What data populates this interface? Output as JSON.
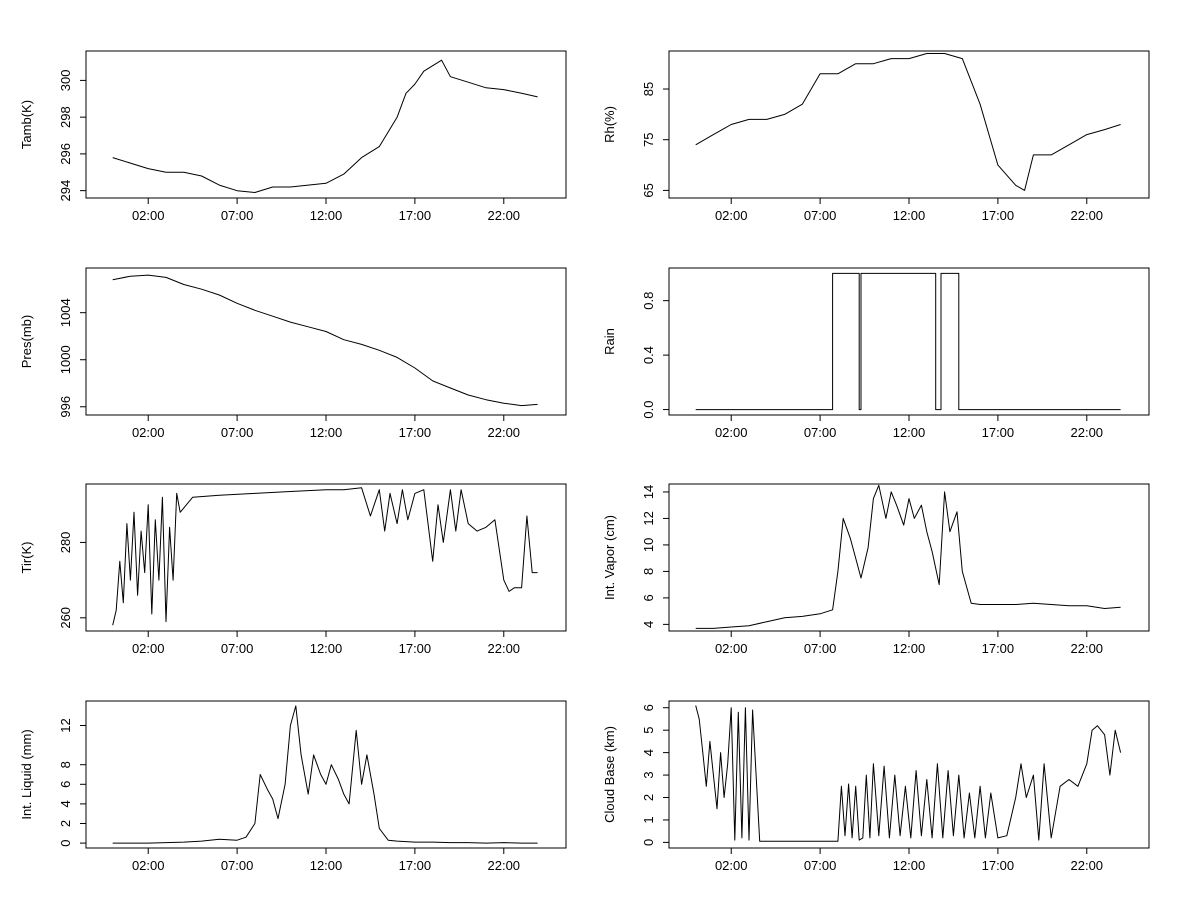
{
  "chart_data": [
    {
      "type": "line",
      "ylabel": "Tamb(K)",
      "xlim": [
        -1.5,
        25.5
      ],
      "ylim": [
        293.6,
        301.6
      ],
      "xticks": [
        2,
        7,
        12,
        17,
        22
      ],
      "xtick_labels": [
        "02:00",
        "07:00",
        "12:00",
        "17:00",
        "22:00"
      ],
      "yticks": [
        294,
        296,
        298,
        300
      ],
      "ytick_labels": [
        "294",
        "296",
        "298",
        "300"
      ],
      "x": [
        0,
        1,
        2,
        3,
        4,
        5,
        6,
        7,
        8,
        9,
        10,
        11,
        12,
        13,
        14,
        15,
        16,
        16.5,
        17,
        17.5,
        18,
        18.5,
        19,
        20,
        21,
        22,
        23,
        23.9
      ],
      "y": [
        295.8,
        295.5,
        295.2,
        295.0,
        295.0,
        294.8,
        294.3,
        294.0,
        293.9,
        294.2,
        294.2,
        294.3,
        294.4,
        294.9,
        295.8,
        296.4,
        298.0,
        299.3,
        299.8,
        300.5,
        300.8,
        301.1,
        300.2,
        299.9,
        299.6,
        299.5,
        299.3,
        299.1
      ]
    },
    {
      "type": "line",
      "ylabel": "Rh(%)",
      "xlim": [
        -1.5,
        25.5
      ],
      "ylim": [
        63.5,
        92.5
      ],
      "xticks": [
        2,
        7,
        12,
        17,
        22
      ],
      "xtick_labels": [
        "02:00",
        "07:00",
        "12:00",
        "17:00",
        "22:00"
      ],
      "yticks": [
        65,
        75,
        85
      ],
      "ytick_labels": [
        "65",
        "75",
        "85"
      ],
      "x": [
        0,
        1,
        2,
        3,
        4,
        5,
        6,
        7,
        8,
        9,
        10,
        11,
        12,
        13,
        14,
        15,
        16,
        17,
        17.5,
        18,
        18.5,
        19,
        20,
        21,
        22,
        23,
        23.9
      ],
      "y": [
        74,
        76,
        78,
        79,
        79,
        80,
        82,
        88,
        88,
        90,
        90,
        91,
        91,
        92,
        92,
        91,
        82,
        70,
        68,
        66,
        65,
        72,
        72,
        74,
        76,
        77,
        78
      ]
    },
    {
      "type": "line",
      "ylabel": "Pres(mb)",
      "xlim": [
        -1.5,
        25.5
      ],
      "ylim": [
        995.3,
        1007.8
      ],
      "xticks": [
        2,
        7,
        12,
        17,
        22
      ],
      "xtick_labels": [
        "02:00",
        "07:00",
        "12:00",
        "17:00",
        "22:00"
      ],
      "yticks": [
        996,
        1000,
        1004
      ],
      "ytick_labels": [
        "996",
        "1000",
        "1004"
      ],
      "x": [
        0,
        1,
        2,
        3,
        4,
        5,
        6,
        7,
        8,
        9,
        10,
        11,
        12,
        13,
        14,
        15,
        16,
        17,
        18,
        19,
        20,
        21,
        22,
        23,
        23.9
      ],
      "y": [
        1006.8,
        1007.1,
        1007.2,
        1007.0,
        1006.4,
        1006.0,
        1005.5,
        1004.8,
        1004.2,
        1003.7,
        1003.2,
        1002.8,
        1002.4,
        1001.7,
        1001.3,
        1000.8,
        1000.2,
        999.3,
        998.2,
        997.6,
        997.0,
        996.6,
        996.3,
        996.1,
        996.2
      ]
    },
    {
      "type": "line",
      "ylabel": "Rain",
      "xlim": [
        -1.5,
        25.5
      ],
      "ylim": [
        -0.04,
        1.04
      ],
      "xticks": [
        2,
        7,
        12,
        17,
        22
      ],
      "xtick_labels": [
        "02:00",
        "07:00",
        "12:00",
        "17:00",
        "22:00"
      ],
      "yticks": [
        0.0,
        0.4,
        0.8
      ],
      "ytick_labels": [
        "0.0",
        "0.4",
        "0.8"
      ],
      "x": [
        0,
        7.7,
        7.7,
        9.2,
        9.2,
        9.3,
        9.3,
        13.5,
        13.5,
        13.8,
        13.8,
        14.8,
        14.8,
        23.9
      ],
      "y": [
        0,
        0,
        1,
        1,
        0,
        0,
        1,
        1,
        0,
        0,
        1,
        1,
        0,
        0
      ]
    },
    {
      "type": "line",
      "ylabel": "Tir(K)",
      "xlim": [
        -1.5,
        25.5
      ],
      "ylim": [
        256.5,
        295.5
      ],
      "xticks": [
        2,
        7,
        12,
        17,
        22
      ],
      "xtick_labels": [
        "02:00",
        "07:00",
        "12:00",
        "17:00",
        "22:00"
      ],
      "yticks": [
        260,
        280
      ],
      "ytick_labels": [
        "260",
        "280"
      ],
      "x": [
        0,
        0.2,
        0.4,
        0.6,
        0.8,
        1.0,
        1.2,
        1.4,
        1.6,
        1.8,
        2.0,
        2.2,
        2.4,
        2.6,
        2.8,
        3.0,
        3.2,
        3.4,
        3.6,
        3.8,
        4.5,
        6,
        8,
        10,
        12,
        13,
        14,
        14.5,
        15,
        15.3,
        15.6,
        16,
        16.3,
        16.6,
        17,
        17.5,
        18,
        18.3,
        18.6,
        19,
        19.3,
        19.6,
        20,
        20.5,
        21,
        21.5,
        22,
        22.3,
        22.6,
        23,
        23.3,
        23.6,
        23.9
      ],
      "y": [
        258,
        262,
        275,
        264,
        285,
        270,
        288,
        266,
        283,
        272,
        290,
        261,
        286,
        270,
        292,
        259,
        284,
        270,
        293,
        288,
        292,
        292.5,
        293,
        293.5,
        294,
        294,
        294.5,
        287,
        294,
        283,
        293,
        285,
        294,
        286,
        293,
        294,
        275,
        290,
        280,
        294,
        283,
        294,
        285,
        283,
        284,
        286,
        270,
        267,
        268,
        268,
        287,
        272,
        272
      ]
    },
    {
      "type": "line",
      "ylabel": "Int. Vapor (cm)",
      "xlim": [
        -1.5,
        25.5
      ],
      "ylim": [
        3.5,
        14.6
      ],
      "xticks": [
        2,
        7,
        12,
        17,
        22
      ],
      "xtick_labels": [
        "02:00",
        "07:00",
        "12:00",
        "17:00",
        "22:00"
      ],
      "yticks": [
        4,
        6,
        8,
        10,
        12,
        14
      ],
      "ytick_labels": [
        "4",
        "6",
        "8",
        "10",
        "12",
        "14"
      ],
      "x": [
        0,
        1,
        2,
        3,
        4,
        5,
        6,
        7,
        7.7,
        8.0,
        8.3,
        8.7,
        9.0,
        9.3,
        9.7,
        10.0,
        10.3,
        10.7,
        11.0,
        11.3,
        11.7,
        12.0,
        12.3,
        12.7,
        13.0,
        13.3,
        13.7,
        14.0,
        14.3,
        14.7,
        15.0,
        15.5,
        16,
        17,
        18,
        19,
        20,
        21,
        22,
        23,
        23.9
      ],
      "y": [
        3.7,
        3.7,
        3.8,
        3.9,
        4.2,
        4.5,
        4.6,
        4.8,
        5.1,
        8.0,
        12.0,
        10.5,
        9.0,
        7.5,
        9.8,
        13.5,
        14.5,
        12.0,
        14.0,
        13.0,
        11.5,
        13.5,
        12.0,
        13.0,
        11.0,
        9.5,
        7.0,
        14.0,
        11.0,
        12.5,
        8.0,
        5.6,
        5.5,
        5.5,
        5.5,
        5.6,
        5.5,
        5.4,
        5.4,
        5.2,
        5.3
      ]
    },
    {
      "type": "line",
      "ylabel": "Int. Liquid (mm)",
      "xlim": [
        -1.5,
        25.5
      ],
      "ylim": [
        -0.5,
        14.5
      ],
      "xticks": [
        2,
        7,
        12,
        17,
        22
      ],
      "xtick_labels": [
        "02:00",
        "07:00",
        "12:00",
        "17:00",
        "22:00"
      ],
      "yticks": [
        0,
        2,
        4,
        6,
        8,
        12
      ],
      "ytick_labels": [
        "0",
        "2",
        "4",
        "6",
        "8",
        "12"
      ],
      "x": [
        0,
        2,
        4,
        5,
        6,
        7,
        7.5,
        8.0,
        8.3,
        8.7,
        9.0,
        9.3,
        9.7,
        10.0,
        10.3,
        10.6,
        11.0,
        11.3,
        11.7,
        12.0,
        12.3,
        12.7,
        13.0,
        13.3,
        13.7,
        14.0,
        14.3,
        14.7,
        15.0,
        15.5,
        16,
        17,
        18,
        19,
        20,
        21,
        22,
        23,
        23.9
      ],
      "y": [
        0,
        0,
        0.1,
        0.2,
        0.4,
        0.3,
        0.6,
        2.0,
        7.0,
        5.5,
        4.5,
        2.5,
        6.0,
        12.0,
        14.0,
        9.0,
        5.0,
        9.0,
        7.0,
        6.0,
        8.0,
        6.5,
        5.0,
        4.0,
        11.5,
        6.0,
        9.0,
        5.0,
        1.5,
        0.3,
        0.2,
        0.1,
        0.1,
        0.05,
        0.05,
        0,
        0.05,
        0,
        0
      ]
    },
    {
      "type": "line",
      "ylabel": "Cloud Base (km)",
      "xlim": [
        -1.5,
        25.5
      ],
      "ylim": [
        -0.25,
        6.3
      ],
      "xticks": [
        2,
        7,
        12,
        17,
        22
      ],
      "xtick_labels": [
        "02:00",
        "07:00",
        "12:00",
        "17:00",
        "22:00"
      ],
      "yticks": [
        0,
        1,
        2,
        3,
        4,
        5,
        6
      ],
      "ytick_labels": [
        "0",
        "1",
        "2",
        "3",
        "4",
        "5",
        "6"
      ],
      "x": [
        0,
        0.2,
        0.4,
        0.6,
        0.8,
        1.0,
        1.2,
        1.4,
        1.6,
        1.8,
        2.0,
        2.2,
        2.4,
        2.6,
        2.8,
        3.0,
        3.2,
        3.4,
        3.6,
        4.0,
        5,
        6,
        7,
        7.7,
        8.0,
        8.2,
        8.4,
        8.6,
        8.8,
        9.0,
        9.2,
        9.4,
        9.6,
        9.8,
        10.0,
        10.3,
        10.6,
        10.9,
        11.2,
        11.5,
        11.8,
        12.1,
        12.4,
        12.7,
        13.0,
        13.3,
        13.6,
        13.9,
        14.2,
        14.5,
        14.8,
        15.1,
        15.4,
        15.7,
        16.0,
        16.3,
        16.6,
        17.0,
        17.5,
        18,
        18.3,
        18.6,
        19,
        19.3,
        19.6,
        20,
        20.5,
        21,
        21.5,
        22,
        22.3,
        22.6,
        23,
        23.3,
        23.6,
        23.9
      ],
      "y": [
        6.1,
        5.5,
        4.0,
        2.5,
        4.5,
        3.0,
        1.5,
        4.0,
        2.0,
        3.5,
        6.0,
        0.1,
        5.8,
        0.2,
        6.0,
        0.1,
        5.9,
        3.0,
        0.05,
        0.05,
        0.05,
        0.05,
        0.05,
        0.05,
        0.05,
        2.5,
        0.3,
        2.6,
        0.2,
        2.5,
        0.1,
        0.2,
        3.0,
        0.2,
        3.5,
        0.3,
        3.4,
        0.2,
        3.0,
        0.3,
        2.5,
        0.2,
        3.2,
        0.3,
        2.8,
        0.2,
        3.5,
        0.2,
        3.2,
        0.3,
        3.0,
        0.2,
        2.2,
        0.2,
        2.5,
        0.2,
        2.2,
        0.2,
        0.3,
        2.0,
        3.5,
        2.0,
        3.0,
        0.1,
        3.5,
        0.2,
        2.5,
        2.8,
        2.5,
        3.5,
        5.0,
        5.2,
        4.8,
        3.0,
        5.0,
        4.0
      ]
    }
  ]
}
